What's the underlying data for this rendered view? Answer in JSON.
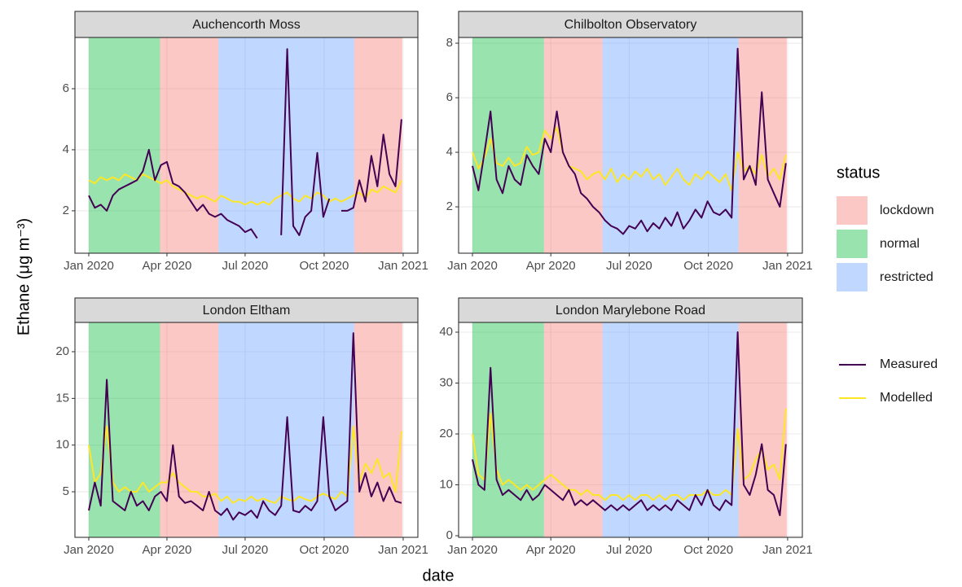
{
  "chart_data": [
    {
      "type": "line",
      "title": "Auchencorth Moss",
      "x": [
        0,
        7,
        14,
        21,
        28,
        35,
        42,
        49,
        56,
        63,
        70,
        77,
        84,
        91,
        98,
        105,
        112,
        119,
        126,
        133,
        140,
        147,
        154,
        161,
        168,
        175,
        182,
        189,
        196,
        203,
        210,
        217,
        224,
        231,
        238,
        245,
        252,
        259,
        266,
        273,
        280,
        287,
        294,
        301,
        308,
        315,
        322,
        329,
        336,
        343,
        350,
        357,
        364
      ],
      "xlim": [
        -16.1,
        383.1
      ],
      "xticks": [
        {
          "value": 0,
          "label": "Jan 2020"
        },
        {
          "value": 91,
          "label": "Apr 2020"
        },
        {
          "value": 182,
          "label": "Jul 2020"
        },
        {
          "value": 274,
          "label": "Oct 2020"
        },
        {
          "value": 366,
          "label": "Jan 2021"
        }
      ],
      "ylim": [
        0.61,
        7.68
      ],
      "yticks": [
        2,
        4,
        6
      ],
      "series": [
        {
          "name": "Modelled",
          "color": "#FDE725",
          "values": [
            3.0,
            2.9,
            3.1,
            3.0,
            3.1,
            3.0,
            3.2,
            3.1,
            3.0,
            3.2,
            3.1,
            3.0,
            2.9,
            3.0,
            2.8,
            2.7,
            2.6,
            2.5,
            2.4,
            2.5,
            2.4,
            2.3,
            2.5,
            2.4,
            2.3,
            2.3,
            2.2,
            2.3,
            2.2,
            2.3,
            2.2,
            2.4,
            2.5,
            2.6,
            2.4,
            2.3,
            2.5,
            2.4,
            2.6,
            2.5,
            2.3,
            2.4,
            2.3,
            2.4,
            2.5,
            2.6,
            2.4,
            2.7,
            2.6,
            2.8,
            2.7,
            2.6,
            3.0
          ]
        },
        {
          "name": "Measured",
          "color": "#440154",
          "values": [
            2.5,
            2.1,
            2.2,
            2.0,
            2.5,
            2.7,
            2.8,
            2.9,
            3.0,
            3.3,
            4.0,
            3.0,
            3.5,
            3.6,
            2.9,
            2.8,
            2.6,
            2.3,
            2.0,
            2.2,
            1.9,
            1.8,
            1.9,
            1.7,
            1.6,
            1.5,
            1.3,
            1.4,
            1.1,
            null,
            null,
            null,
            1.2,
            7.3,
            1.5,
            1.2,
            1.8,
            2.0,
            3.9,
            1.8,
            2.4,
            null,
            2.0,
            2.0,
            2.1,
            3.0,
            2.3,
            3.8,
            2.8,
            4.5,
            3.2,
            2.8,
            5.0
          ]
        }
      ]
    },
    {
      "type": "line",
      "title": "Chilbolton Observatory",
      "x": [
        0,
        7,
        14,
        21,
        28,
        35,
        42,
        49,
        56,
        63,
        70,
        77,
        84,
        91,
        98,
        105,
        112,
        119,
        126,
        133,
        140,
        147,
        154,
        161,
        168,
        175,
        182,
        189,
        196,
        203,
        210,
        217,
        224,
        231,
        238,
        245,
        252,
        259,
        266,
        273,
        280,
        287,
        294,
        301,
        308,
        315,
        322,
        329,
        336,
        343,
        350,
        357,
        364
      ],
      "xlim": [
        -16.1,
        383.1
      ],
      "xticks": [
        {
          "value": 0,
          "label": "Jan 2020"
        },
        {
          "value": 91,
          "label": "Apr 2020"
        },
        {
          "value": 182,
          "label": "Jul 2020"
        },
        {
          "value": 274,
          "label": "Oct 2020"
        },
        {
          "value": 366,
          "label": "Jan 2021"
        }
      ],
      "ylim": [
        0.3,
        8.21
      ],
      "yticks": [
        2,
        4,
        6,
        8
      ],
      "series": [
        {
          "name": "Modelled",
          "color": "#FDE725",
          "values": [
            4.0,
            3.4,
            3.8,
            4.5,
            3.6,
            3.5,
            3.8,
            3.5,
            3.6,
            4.2,
            3.9,
            4.0,
            4.8,
            4.5,
            4.9,
            4.0,
            3.5,
            3.4,
            3.3,
            3.0,
            3.2,
            3.3,
            3.0,
            3.4,
            2.9,
            3.2,
            3.0,
            3.3,
            3.1,
            3.4,
            3.0,
            3.2,
            2.8,
            3.1,
            3.4,
            3.0,
            2.8,
            3.2,
            3.0,
            3.3,
            3.1,
            2.9,
            3.2,
            2.6,
            4.0,
            3.3,
            3.5,
            3.2,
            3.9,
            3.1,
            3.4,
            3.0,
            3.9
          ]
        },
        {
          "name": "Measured",
          "color": "#440154",
          "values": [
            3.5,
            2.6,
            4.0,
            5.5,
            3.0,
            2.5,
            3.5,
            3.0,
            2.8,
            3.9,
            3.5,
            3.2,
            4.5,
            4.0,
            5.5,
            4.0,
            3.5,
            3.2,
            2.5,
            2.3,
            2.0,
            1.8,
            1.5,
            1.3,
            1.2,
            1.0,
            1.3,
            1.2,
            1.5,
            1.1,
            1.4,
            1.2,
            1.6,
            1.3,
            1.8,
            1.2,
            1.5,
            1.9,
            1.6,
            2.2,
            1.8,
            1.7,
            1.9,
            1.6,
            7.8,
            3.0,
            3.5,
            2.8,
            6.2,
            3.0,
            2.5,
            2.0,
            3.6
          ]
        }
      ]
    },
    {
      "type": "line",
      "title": "London Eltham",
      "x": [
        0,
        7,
        14,
        21,
        28,
        35,
        42,
        49,
        56,
        63,
        70,
        77,
        84,
        91,
        98,
        105,
        112,
        119,
        126,
        133,
        140,
        147,
        154,
        161,
        168,
        175,
        182,
        189,
        196,
        203,
        210,
        217,
        224,
        231,
        238,
        245,
        252,
        259,
        266,
        273,
        280,
        287,
        294,
        301,
        308,
        315,
        322,
        329,
        336,
        343,
        350,
        357,
        364
      ],
      "xlim": [
        -16.1,
        383.1
      ],
      "xticks": [
        {
          "value": 0,
          "label": "Jan 2020"
        },
        {
          "value": 91,
          "label": "Apr 2020"
        },
        {
          "value": 182,
          "label": "Jul 2020"
        },
        {
          "value": 274,
          "label": "Oct 2020"
        },
        {
          "value": 366,
          "label": "Jan 2021"
        }
      ],
      "ylim": [
        0.12,
        23.14
      ],
      "yticks": [
        5,
        10,
        15,
        20
      ],
      "series": [
        {
          "name": "Modelled",
          "color": "#FDE725",
          "values": [
            10,
            6,
            7,
            12,
            6,
            5,
            5.5,
            5,
            5,
            6,
            5,
            5.5,
            6,
            6,
            7,
            6,
            5.5,
            5,
            5,
            4.5,
            4.5,
            4.8,
            4.0,
            4.5,
            3.8,
            4.2,
            4.0,
            4.5,
            4.0,
            4.3,
            4.0,
            3.8,
            4.5,
            4.2,
            4.0,
            4.5,
            4.2,
            4.0,
            4.5,
            4.8,
            4.5,
            4.2,
            5.0,
            4.5,
            12.0,
            6.0,
            8.0,
            7.0,
            8.5,
            6.5,
            7.0,
            5.0,
            11.5
          ]
        },
        {
          "name": "Measured",
          "color": "#440154",
          "values": [
            3.0,
            6.0,
            3.5,
            17.0,
            4.0,
            3.5,
            3.0,
            5.0,
            3.5,
            4.0,
            3.0,
            4.5,
            5.0,
            4.0,
            10.0,
            4.5,
            3.8,
            4.0,
            3.5,
            3.0,
            5.0,
            3.0,
            2.5,
            3.2,
            2.0,
            2.8,
            2.5,
            3.0,
            2.2,
            4.0,
            3.0,
            2.5,
            3.5,
            13.0,
            3.0,
            2.8,
            3.5,
            3.0,
            4.0,
            13.0,
            4.5,
            3.0,
            3.5,
            4.0,
            22.0,
            5.0,
            7.0,
            4.5,
            6.0,
            4.0,
            5.5,
            4.0,
            3.8
          ]
        }
      ]
    },
    {
      "type": "line",
      "title": "London Marylebone Road",
      "x": [
        0,
        7,
        14,
        21,
        28,
        35,
        42,
        49,
        56,
        63,
        70,
        77,
        84,
        91,
        98,
        105,
        112,
        119,
        126,
        133,
        140,
        147,
        154,
        161,
        168,
        175,
        182,
        189,
        196,
        203,
        210,
        217,
        224,
        231,
        238,
        245,
        252,
        259,
        266,
        273,
        280,
        287,
        294,
        301,
        308,
        315,
        322,
        329,
        336,
        343,
        350,
        357,
        364
      ],
      "xlim": [
        -16.1,
        383.1
      ],
      "xticks": [
        {
          "value": 0,
          "label": "Jan 2020"
        },
        {
          "value": 91,
          "label": "Apr 2020"
        },
        {
          "value": 182,
          "label": "Jul 2020"
        },
        {
          "value": 274,
          "label": "Oct 2020"
        },
        {
          "value": 366,
          "label": "Jan 2021"
        }
      ],
      "ylim": [
        -0.32,
        41.92
      ],
      "yticks": [
        0,
        10,
        20,
        30,
        40
      ],
      "series": [
        {
          "name": "Modelled",
          "color": "#FDE725",
          "values": [
            20,
            12,
            11,
            24,
            13,
            10,
            11,
            10,
            9,
            10,
            9,
            10,
            11,
            12,
            11,
            10,
            9,
            9,
            8,
            9,
            8,
            8,
            7,
            8,
            8,
            7,
            8,
            7,
            8,
            8,
            7,
            8,
            7,
            8,
            8,
            7,
            8,
            8,
            8,
            9,
            8,
            8,
            9,
            8,
            21,
            11,
            12,
            15,
            17,
            13,
            14,
            11,
            25
          ]
        },
        {
          "name": "Measured",
          "color": "#440154",
          "values": [
            15,
            10,
            9,
            33,
            11,
            8,
            9,
            8,
            7,
            9,
            7,
            8,
            10,
            9,
            8,
            7,
            9,
            6,
            7,
            6,
            7,
            6,
            5,
            6,
            5,
            6,
            5,
            6,
            7,
            5,
            6,
            5,
            6,
            5,
            7,
            6,
            5,
            8,
            6,
            9,
            6,
            5,
            7,
            6,
            40,
            10,
            8,
            12,
            18,
            9,
            8,
            4,
            18
          ]
        }
      ]
    }
  ],
  "x_label": "date",
  "y_label": "Ethane (μg m⁻³)",
  "status": {
    "title": "status",
    "alpha": 0.4,
    "items": [
      {
        "name": "lockdown",
        "color": "#F8766D",
        "periods": [
          [
            83,
            151
          ],
          [
            309,
            365
          ]
        ]
      },
      {
        "name": "normal",
        "color": "#00BA38",
        "periods": [
          [
            0,
            83
          ]
        ]
      },
      {
        "name": "restricted",
        "color": "#619CFF",
        "periods": [
          [
            151,
            309
          ]
        ]
      }
    ]
  }
}
